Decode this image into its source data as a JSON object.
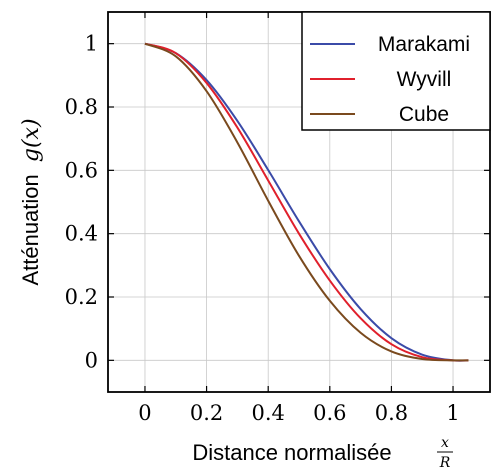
{
  "chart_data": {
    "type": "line",
    "title": "",
    "xlabel": "Distance normalisée",
    "xlabel_math_num": "x",
    "xlabel_math_den": "R",
    "ylabel": "Atténuation",
    "ylabel_math": "g(x)",
    "xlim": [
      -0.12,
      1.12
    ],
    "ylim": [
      -0.1,
      1.1
    ],
    "grid": true,
    "legend_position": "top-right",
    "x_ticks": [
      "0",
      "0.2",
      "0.4",
      "0.6",
      "0.8",
      "1"
    ],
    "x_tick_values": [
      0,
      0.2,
      0.4,
      0.6,
      0.8,
      1
    ],
    "y_ticks": [
      "0",
      "0.2",
      "0.4",
      "0.6",
      "0.8",
      "1"
    ],
    "y_tick_values": [
      0,
      0.2,
      0.4,
      0.6,
      0.8,
      1
    ],
    "x": [
      0,
      0.1,
      0.2,
      0.3,
      0.4,
      0.5,
      0.6,
      0.7,
      0.8,
      0.9,
      1.0,
      1.05
    ],
    "series": [
      {
        "name": "Marakami",
        "color": "#3b4ba8",
        "values": [
          1.0,
          0.97,
          0.885,
          0.756,
          0.601,
          0.439,
          0.288,
          0.162,
          0.07,
          0.018,
          0.0,
          0.0
        ]
      },
      {
        "name": "Wyvill",
        "color": "#e0202c",
        "values": [
          1.0,
          0.97,
          0.876,
          0.735,
          0.568,
          0.4,
          0.252,
          0.133,
          0.051,
          0.01,
          0.0,
          0.0
        ]
      },
      {
        "name": "Cube",
        "color": "#7a4a1e",
        "values": [
          1.0,
          0.96,
          0.85,
          0.688,
          0.504,
          0.33,
          0.188,
          0.087,
          0.028,
          0.004,
          0.0,
          0.0
        ]
      }
    ]
  }
}
